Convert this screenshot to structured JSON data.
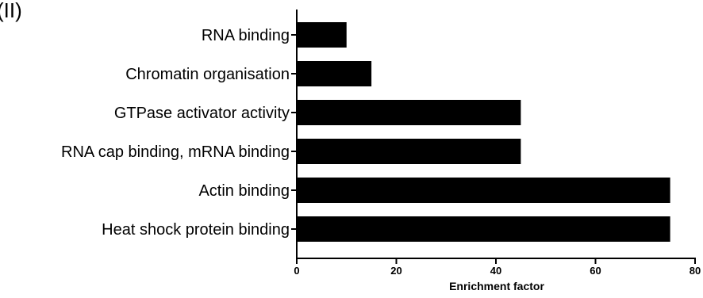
{
  "panel_label": "(II)",
  "chart_data": {
    "type": "bar",
    "orientation": "horizontal",
    "categories": [
      "RNA binding",
      "Chromatin organisation",
      "GTPase activator activity",
      "RNA cap binding, mRNA binding",
      "Actin binding",
      "Heat shock protein binding"
    ],
    "values": [
      10,
      15,
      45,
      45,
      75,
      75
    ],
    "title": "",
    "xlabel": "Enrichment factor",
    "ylabel": "",
    "xlim": [
      0,
      80
    ],
    "xticks": [
      0,
      20,
      40,
      60,
      80
    ],
    "xtick_labels": [
      "0",
      "20",
      "40",
      "60",
      "80"
    ],
    "grid": false,
    "bar_color": "#000000"
  }
}
